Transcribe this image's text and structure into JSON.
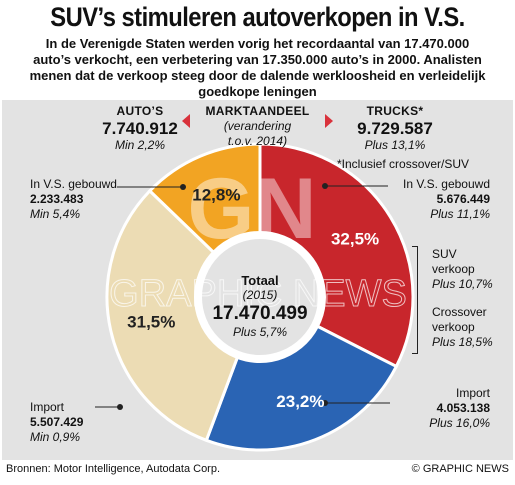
{
  "title": "SUV’s stimuleren autoverkopen in V.S.",
  "intro": [
    "In de Verenigde Staten werden vorig het recordaantal van 17.470.000",
    "auto’s verkocht, een verbetering van 17.350.000 auto’s in 2000. Analisten",
    "menen dat de verkoop steeg door de dalende werkloosheid en verleidelijk",
    "goedkope leningen"
  ],
  "autos": {
    "header": "AUTO’S",
    "value": "7.740.912",
    "change": "Min 2,2%"
  },
  "trucks": {
    "header": "TRUCKS*",
    "value": "9.729.587",
    "change": "Plus 13,1%",
    "note": "*Inclusief crossover/SUV"
  },
  "market": {
    "header": "MARKTAANDEEL",
    "sub1": "(verandering",
    "sub2": "t.o.v. 2014)"
  },
  "segments": {
    "autos_us": {
      "label": "In V.S. gebouwd",
      "value": "2.233.483",
      "change": "Min 5,4%"
    },
    "autos_import": {
      "label": "Import",
      "value": "5.507.429",
      "change": "Min 0,9%"
    },
    "trucks_us": {
      "label": "In V.S. gebouwd",
      "value": "5.676.449",
      "change": "Plus 11,1%"
    },
    "trucks_import": {
      "label": "Import",
      "value": "4.053.138",
      "change": "Plus 16,0%"
    },
    "suv": {
      "label1": "SUV",
      "label2": "verkoop",
      "change": "Plus 10,7%"
    },
    "crossover": {
      "label1": "Crossover",
      "label2": "verkoop",
      "change": "Plus 18,5%"
    }
  },
  "total": {
    "label": "Totaal",
    "year": "(2015)",
    "value": "17.470.499",
    "change": "Plus 5,7%"
  },
  "watermark": {
    "letters": "GN",
    "text": "GRAPHIC NEWS"
  },
  "footer": {
    "sources": "Bronnen: Motor Intelligence, Autodata Corp.",
    "credit": "© GRAPHIC NEWS"
  },
  "colors": {
    "trucks_us": "#c8262c",
    "trucks_import": "#2a64b4",
    "autos_import": "#ecdcb4",
    "autos_us": "#f2a423",
    "panel": "#e3e3e3",
    "arrow": "#d9323c"
  },
  "chart_data": {
    "type": "pie",
    "title": "",
    "slices": [
      {
        "name": "Trucks – In V.S. gebouwd",
        "value": 32.5,
        "label": "32,5%"
      },
      {
        "name": "Trucks – Import",
        "value": 23.2,
        "label": "23,2%"
      },
      {
        "name": "Auto’s – Import",
        "value": 31.5,
        "label": "31,5%"
      },
      {
        "name": "Auto’s – In V.S. gebouwd",
        "value": 12.8,
        "label": "12,8%"
      }
    ],
    "start_angle_deg": 0,
    "donut": true
  }
}
